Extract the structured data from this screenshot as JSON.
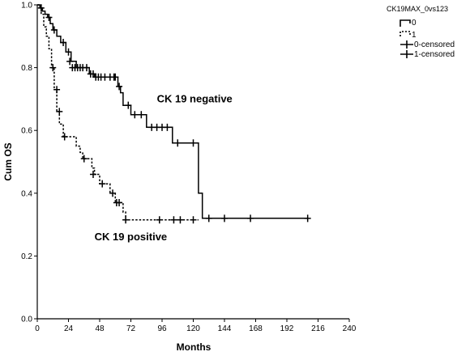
{
  "chart_data": {
    "type": "line",
    "subtype": "kaplan-meier",
    "title": "",
    "xlabel": "Months",
    "ylabel": "Cum OS",
    "xlim": [
      0,
      240
    ],
    "ylim": [
      0,
      1.0
    ],
    "x_ticks": [
      0,
      24,
      48,
      72,
      96,
      120,
      144,
      168,
      192,
      216,
      240
    ],
    "y_ticks": [
      0.0,
      0.2,
      0.4,
      0.6,
      0.8,
      1.0
    ],
    "y_tick_labels": [
      "0.0",
      "0.2",
      "0.4",
      "0.6",
      "0.8",
      "1.0"
    ],
    "grid": false,
    "legend": {
      "title": "CK19MAX_0vs123",
      "position": "top-right",
      "entries": [
        "0",
        "1",
        "0-censored",
        "1-censored"
      ]
    },
    "annotations": [
      {
        "text": "CK 19 negative",
        "x": 92,
        "y": 0.69
      },
      {
        "text": "CK 19 positive",
        "x": 44,
        "y": 0.25
      }
    ],
    "series": [
      {
        "name": "0",
        "style": "solid",
        "steps": [
          [
            0,
            1.0
          ],
          [
            2,
            0.99
          ],
          [
            4,
            0.98
          ],
          [
            6,
            0.97
          ],
          [
            8,
            0.96
          ],
          [
            10,
            0.94
          ],
          [
            12,
            0.92
          ],
          [
            15,
            0.9
          ],
          [
            18,
            0.88
          ],
          [
            22,
            0.85
          ],
          [
            26,
            0.82
          ],
          [
            30,
            0.8
          ],
          [
            40,
            0.78
          ],
          [
            44,
            0.77
          ],
          [
            62,
            0.74
          ],
          [
            64,
            0.72
          ],
          [
            66,
            0.68
          ],
          [
            72,
            0.65
          ],
          [
            84,
            0.61
          ],
          [
            104,
            0.56
          ],
          [
            124,
            0.4
          ],
          [
            127,
            0.32
          ],
          [
            208,
            0.32
          ]
        ],
        "censored": [
          [
            3,
            0.99
          ],
          [
            9,
            0.96
          ],
          [
            13,
            0.92
          ],
          [
            20,
            0.88
          ],
          [
            24,
            0.85
          ],
          [
            25,
            0.82
          ],
          [
            27,
            0.8
          ],
          [
            29,
            0.8
          ],
          [
            31,
            0.8
          ],
          [
            33,
            0.8
          ],
          [
            35,
            0.8
          ],
          [
            38,
            0.8
          ],
          [
            41,
            0.78
          ],
          [
            43,
            0.78
          ],
          [
            45,
            0.77
          ],
          [
            47,
            0.77
          ],
          [
            49,
            0.77
          ],
          [
            52,
            0.77
          ],
          [
            56,
            0.77
          ],
          [
            59,
            0.77
          ],
          [
            60,
            0.77
          ],
          [
            63,
            0.74
          ],
          [
            70,
            0.68
          ],
          [
            75,
            0.65
          ],
          [
            80,
            0.65
          ],
          [
            88,
            0.61
          ],
          [
            92,
            0.61
          ],
          [
            96,
            0.61
          ],
          [
            100,
            0.61
          ],
          [
            108,
            0.56
          ],
          [
            120,
            0.56
          ],
          [
            132,
            0.32
          ],
          [
            144,
            0.32
          ],
          [
            164,
            0.32
          ],
          [
            208,
            0.32
          ]
        ]
      },
      {
        "name": "1",
        "style": "dashed",
        "steps": [
          [
            0,
            1.0
          ],
          [
            3,
            0.97
          ],
          [
            5,
            0.93
          ],
          [
            7,
            0.9
          ],
          [
            9,
            0.86
          ],
          [
            11,
            0.8
          ],
          [
            13,
            0.73
          ],
          [
            15,
            0.66
          ],
          [
            17,
            0.62
          ],
          [
            20,
            0.58
          ],
          [
            30,
            0.55
          ],
          [
            33,
            0.53
          ],
          [
            35,
            0.51
          ],
          [
            42,
            0.48
          ],
          [
            44,
            0.46
          ],
          [
            48,
            0.43
          ],
          [
            56,
            0.4
          ],
          [
            60,
            0.37
          ],
          [
            66,
            0.34
          ],
          [
            68,
            0.315
          ],
          [
            124,
            0.315
          ]
        ],
        "censored": [
          [
            12,
            0.8
          ],
          [
            15,
            0.73
          ],
          [
            17,
            0.66
          ],
          [
            21,
            0.58
          ],
          [
            36,
            0.51
          ],
          [
            43,
            0.46
          ],
          [
            50,
            0.43
          ],
          [
            58,
            0.4
          ],
          [
            61,
            0.37
          ],
          [
            63,
            0.37
          ],
          [
            68,
            0.315
          ],
          [
            94,
            0.315
          ],
          [
            105,
            0.315
          ],
          [
            110,
            0.315
          ],
          [
            120,
            0.315
          ]
        ]
      }
    ]
  }
}
